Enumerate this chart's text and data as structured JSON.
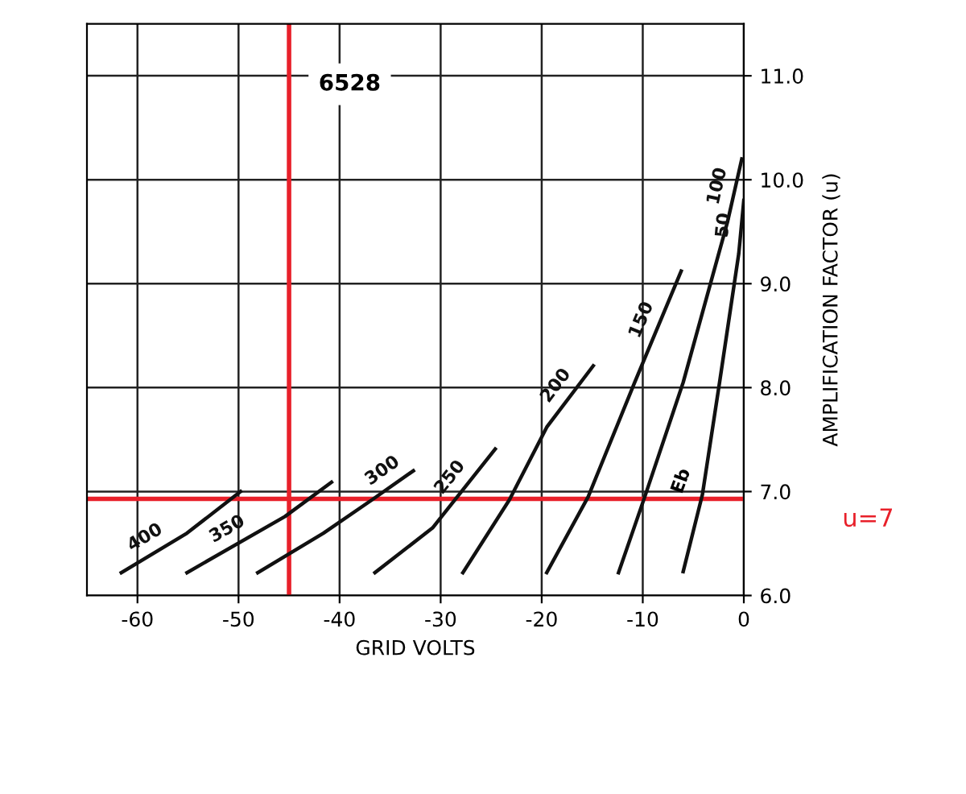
{
  "chart_data": {
    "type": "line",
    "title": "6528",
    "xlabel": "GRID VOLTS",
    "ylabel": "AMPLIFICATION FACTOR (u)",
    "xlim": [
      -65,
      0
    ],
    "xticks": [
      -60,
      -50,
      -40,
      -30,
      -20,
      -10,
      0
    ],
    "ylim": [
      6.0,
      11.5
    ],
    "yticks": [
      {
        "value": 6.0,
        "label": "6.0"
      },
      {
        "value": 7.0,
        "label": "7.0"
      },
      {
        "value": 8.0,
        "label": "8.0"
      },
      {
        "value": 9.0,
        "label": "9.0"
      },
      {
        "value": 10.0,
        "label": "10.0"
      },
      {
        "value": 11.0,
        "label": "11.0"
      }
    ],
    "grid": true,
    "marker": "none",
    "line_style": "solid",
    "series": [
      {
        "name": "400",
        "color": "#111111",
        "x": [
          -61.6,
          -55.1,
          -49.8
        ],
        "values": [
          6.22,
          6.6,
          7.0
        ]
      },
      {
        "name": "350",
        "color": "#111111",
        "x": [
          -55.1,
          -45.4,
          -40.8
        ],
        "values": [
          6.22,
          6.76,
          7.09
        ]
      },
      {
        "name": "300",
        "color": "#111111",
        "x": [
          -48.1,
          -41.6,
          -36.8,
          -32.7
        ],
        "values": [
          6.22,
          6.6,
          6.92,
          7.2
        ]
      },
      {
        "name": "250",
        "color": "#111111",
        "x": [
          -36.5,
          -30.8,
          -24.6
        ],
        "values": [
          6.22,
          6.65,
          7.41
        ]
      },
      {
        "name": "200",
        "color": "#111111",
        "x": [
          -27.8,
          -23.2,
          -19.5,
          -14.9
        ],
        "values": [
          6.22,
          6.92,
          7.62,
          8.21
        ]
      },
      {
        "name": "150",
        "color": "#111111",
        "x": [
          -19.5,
          -15.4,
          -10.8,
          -6.2
        ],
        "values": [
          6.22,
          6.95,
          8.05,
          9.12
        ]
      },
      {
        "name": "100",
        "color": "#111111",
        "x": [
          -12.4,
          -9.8,
          -6.0,
          -1.6,
          -0.2
        ],
        "values": [
          6.22,
          6.95,
          8.05,
          9.6,
          10.2
        ]
      },
      {
        "name": "50",
        "color": "#111111",
        "x": [
          -6.0,
          -4.1,
          -2.4,
          -0.5,
          0.0
        ],
        "values": [
          6.23,
          6.97,
          8.05,
          9.29,
          9.8
        ]
      }
    ],
    "annotations": [
      "Eb"
    ],
    "ref_lines": [
      {
        "axis": "y",
        "value": 6.93,
        "label": "u=7",
        "color": "#e8202a"
      },
      {
        "axis": "x",
        "value": -45,
        "color": "#e8202a"
      }
    ]
  }
}
